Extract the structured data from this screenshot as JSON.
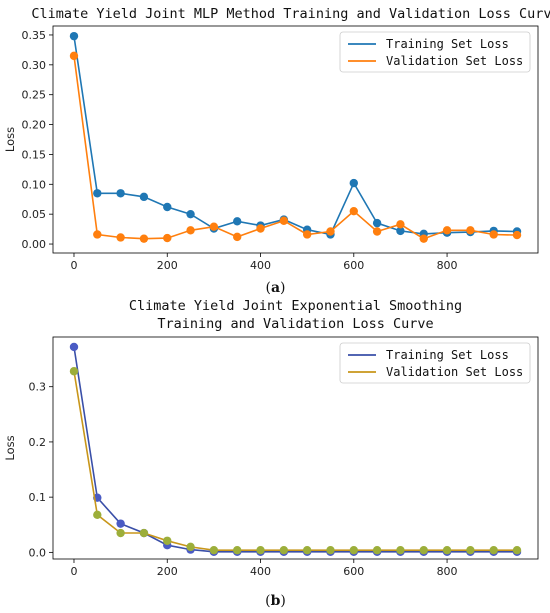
{
  "chart_data": [
    {
      "type": "line",
      "title": "Climate Yield Joint MLP Method Training and Validation Loss Curve",
      "xlabel": "",
      "ylabel": "Loss",
      "xlim": [
        -45,
        995
      ],
      "ylim": [
        -0.015,
        0.365
      ],
      "xticks": [
        0,
        200,
        400,
        600,
        800
      ],
      "yticks": [
        0.0,
        0.05,
        0.1,
        0.15,
        0.2,
        0.25,
        0.3,
        0.35
      ],
      "ytick_labels": [
        "0.00",
        "0.05",
        "0.10",
        "0.15",
        "0.20",
        "0.25",
        "0.30",
        "0.35"
      ],
      "x": [
        0,
        50,
        100,
        150,
        200,
        250,
        300,
        350,
        400,
        450,
        500,
        550,
        600,
        650,
        700,
        750,
        800,
        850,
        900,
        950
      ],
      "series": [
        {
          "name": "Training Set Loss",
          "color": "#1f77b4",
          "values": [
            0.348,
            0.085,
            0.085,
            0.079,
            0.062,
            0.05,
            0.026,
            0.038,
            0.031,
            0.041,
            0.024,
            0.016,
            0.102,
            0.035,
            0.022,
            0.017,
            0.019,
            0.02,
            0.022,
            0.021
          ]
        },
        {
          "name": "Validation Set Loss",
          "color": "#ff7f0e",
          "values": [
            0.315,
            0.016,
            0.011,
            0.009,
            0.01,
            0.023,
            0.029,
            0.012,
            0.026,
            0.039,
            0.016,
            0.021,
            0.055,
            0.021,
            0.033,
            0.009,
            0.023,
            0.023,
            0.016,
            0.015
          ]
        }
      ],
      "legend": "top-right",
      "grid": false,
      "caption": "(a)"
    },
    {
      "type": "line",
      "title": "Climate Yield Joint Exponential Smoothing\nTraining and Validation Loss Curve",
      "xlabel": "",
      "ylabel": "Loss",
      "xlim": [
        -45,
        995
      ],
      "ylim": [
        -0.012,
        0.39
      ],
      "xticks": [
        0,
        200,
        400,
        600,
        800
      ],
      "yticks": [
        0.0,
        0.1,
        0.2,
        0.3
      ],
      "ytick_labels": [
        "0.0",
        "0.1",
        "0.2",
        "0.3"
      ],
      "x": [
        0,
        50,
        100,
        150,
        200,
        250,
        300,
        350,
        400,
        450,
        500,
        550,
        600,
        650,
        700,
        750,
        800,
        850,
        900,
        950
      ],
      "series": [
        {
          "name": "Training Set Loss",
          "color": "#3a4fa8",
          "marker_color": "#4a5bc4",
          "values": [
            0.372,
            0.099,
            0.052,
            0.035,
            0.013,
            0.005,
            0.001,
            0.001,
            0.001,
            0.001,
            0.001,
            0.001,
            0.001,
            0.001,
            0.001,
            0.001,
            0.001,
            0.001,
            0.001,
            0.001
          ]
        },
        {
          "name": "Validation Set Loss",
          "color": "#c8961a",
          "marker_color": "#9cae3a",
          "values": [
            0.328,
            0.068,
            0.035,
            0.035,
            0.021,
            0.01,
            0.004,
            0.004,
            0.004,
            0.004,
            0.004,
            0.004,
            0.004,
            0.004,
            0.004,
            0.004,
            0.004,
            0.004,
            0.004,
            0.004
          ]
        }
      ],
      "legend": "top-right",
      "grid": false,
      "caption": "(b)"
    }
  ]
}
